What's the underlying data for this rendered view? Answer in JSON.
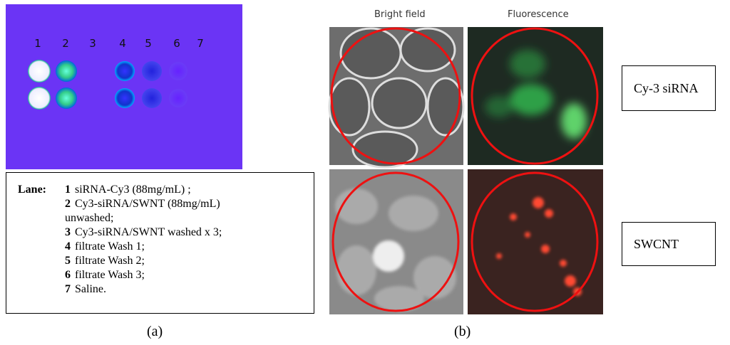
{
  "panel_a": {
    "lane_numbers": [
      "1",
      "2",
      "3",
      "4",
      "5",
      "6",
      "7"
    ],
    "legend": {
      "heading": "Lane:",
      "items": [
        {
          "number": "1",
          "text": "siRNA-Cy3 (88mg/mL) ;"
        },
        {
          "number": "2",
          "text": "Cy3-siRNA/SWNT (88mg/mL) unwashed;"
        },
        {
          "number": "3",
          "text": "Cy3-siRNA/SWNT washed x 3;"
        },
        {
          "number": "4",
          "text": "filtrate Wash  1;"
        },
        {
          "number": "5",
          "text": "filtrate Wash  2;"
        },
        {
          "number": "6",
          "text": "filtrate Wash  3;"
        },
        {
          "number": "7",
          "text": "Saline."
        }
      ]
    },
    "caption": "(a)"
  },
  "panel_b": {
    "column_headers": [
      "Bright field",
      "Fluorescence"
    ],
    "row_labels": [
      "Cy-3 siRNA",
      "SWCNT"
    ],
    "caption": "(b)"
  }
}
